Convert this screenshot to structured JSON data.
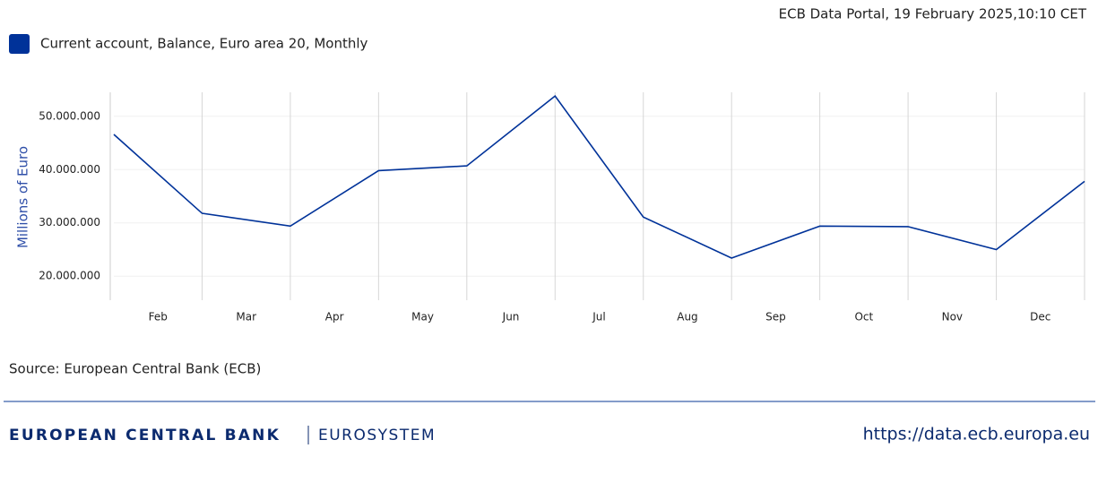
{
  "header": {
    "timestamp": "ECB Data Portal, 19 February 2025,10:10 CET"
  },
  "chart_data": {
    "type": "line",
    "ylabel": "Millions of Euro",
    "categories": [
      null,
      null,
      null,
      null,
      null,
      null,
      null,
      null,
      null,
      null,
      null,
      null
    ],
    "x_labels": [
      "Feb",
      "Mar",
      "Apr",
      "May",
      "Jun",
      "Jul",
      "Aug",
      "Sep",
      "Oct",
      "Nov",
      "Dec"
    ],
    "series": [
      {
        "name": "Current account, Balance, Euro area 20, Monthly",
        "color": "#003299",
        "values": [
          46600000,
          31800000,
          29400000,
          39800000,
          40700000,
          53800000,
          31100000,
          23400000,
          29400000,
          29300000,
          25000000,
          37800000
        ]
      }
    ],
    "ylim": [
      15500000,
      54500000
    ],
    "yticks": [
      {
        "value": 20000000,
        "label": "20.000.000"
      },
      {
        "value": 30000000,
        "label": "30.000.000"
      },
      {
        "value": 40000000,
        "label": "40.000.000"
      },
      {
        "value": 50000000,
        "label": "50.000.000"
      }
    ],
    "grid": true,
    "legend": "top-left"
  },
  "source": "Source: European Central Bank (ECB)",
  "footer": {
    "brand": "EUROPEAN CENTRAL BANK",
    "system": "EUROSYSTEM",
    "url": "https://data.ecb.europa.eu"
  }
}
